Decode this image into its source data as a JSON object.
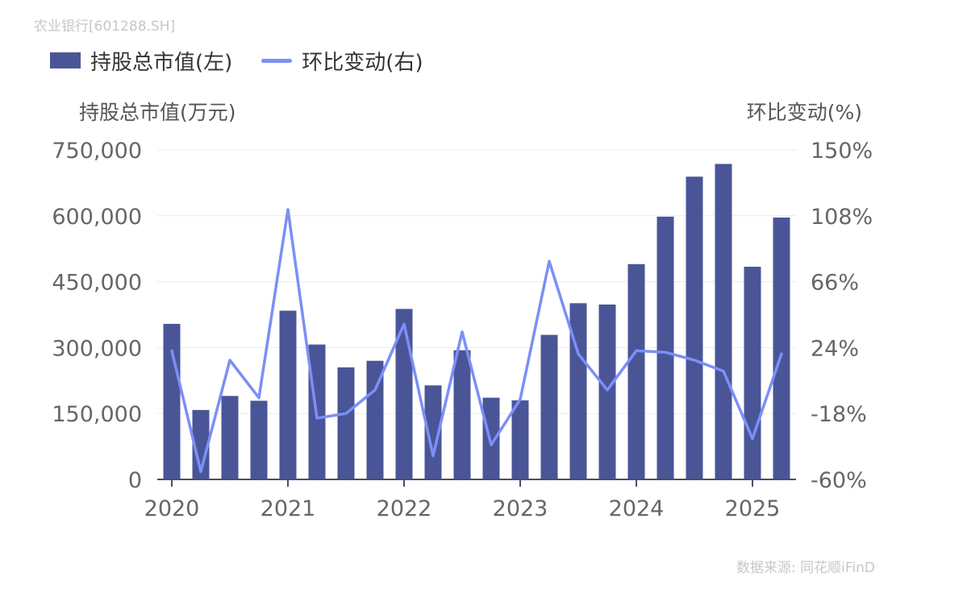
{
  "header": {
    "stock_label": "农业银行[601288.SH]",
    "legend_left": "持股总市值(左)",
    "legend_right": "环比变动(右)",
    "yaxis_left_title": "持股总市值(万元)",
    "yaxis_right_title": "环比变动(%)",
    "source": "数据来源: 同花顺iFinD"
  },
  "chart_data": {
    "type": "bar+line",
    "x_ticks": [
      "2020",
      "2021",
      "2022",
      "2023",
      "2024",
      "2025"
    ],
    "left_axis": {
      "ylim": [
        0,
        750000
      ],
      "ticks": [
        "750,000",
        "600,000",
        "450,000",
        "300,000",
        "150,000",
        "0"
      ]
    },
    "right_axis": {
      "ylim": [
        -60,
        150
      ],
      "ticks": [
        "150%",
        "108%",
        "66%",
        "24%",
        "-18%",
        "-60%"
      ]
    },
    "categories": [
      "2020Q1",
      "2020Q2",
      "2020Q3",
      "2020Q4",
      "2021Q1",
      "2021Q2",
      "2021Q3",
      "2021Q4",
      "2022Q1",
      "2022Q2",
      "2022Q3",
      "2022Q4",
      "2023Q1",
      "2023Q2",
      "2023Q3",
      "2023Q4",
      "2024Q1",
      "2024Q2",
      "2024Q3",
      "2024Q4",
      "2025Q1",
      "2025Q2"
    ],
    "series": [
      {
        "name": "持股总市值(左)",
        "type": "bar",
        "color": "#4a5597",
        "values": [
          354000,
          158000,
          190000,
          179000,
          384000,
          307000,
          255000,
          270000,
          388000,
          214000,
          294000,
          186000,
          180000,
          329000,
          401000,
          398000,
          490000,
          598000,
          689000,
          718000,
          484000,
          596000
        ]
      },
      {
        "name": "环比变动(右)",
        "type": "line",
        "color": "#7b8ff7",
        "values": [
          22,
          -55,
          16,
          -8,
          112,
          -21,
          -18,
          -3,
          39,
          -45,
          34,
          -38,
          -9,
          79,
          20,
          -3,
          22,
          21,
          16,
          9,
          -34,
          20
        ]
      }
    ],
    "grid": true
  }
}
